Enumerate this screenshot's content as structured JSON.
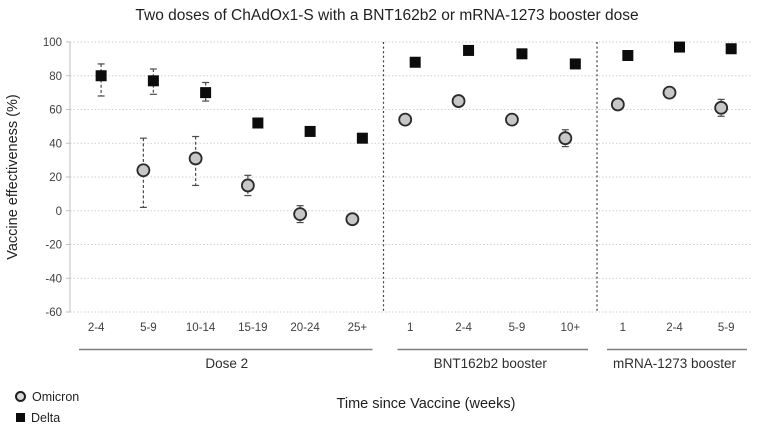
{
  "chart_data": {
    "type": "scatter",
    "title": "Two doses of ChAdOx1-S with a BNT162b2 or mRNA-1273 booster dose",
    "xlabel": "Time since Vaccine (weeks)",
    "ylabel": "Vaccine effectiveness (%)",
    "ylim": [
      -60,
      100
    ],
    "ytick_step": 20,
    "grid": true,
    "legend_position": "bottom-left",
    "groups": [
      {
        "label": "Dose 2",
        "categories": [
          "2-4",
          "5-9",
          "10-14",
          "15-19",
          "20-24",
          "25+"
        ]
      },
      {
        "label": "BNT162b2 booster",
        "categories": [
          "1",
          "2-4",
          "5-9",
          "10+"
        ]
      },
      {
        "label": "mRNA-1273 booster",
        "categories": [
          "1",
          "2-4",
          "5-9"
        ]
      }
    ],
    "series": [
      {
        "name": "Omicron",
        "marker": "circle",
        "fill": "#c7c7c7",
        "stroke": "#2b2b2b",
        "values": [
          [
            null,
            24,
            31,
            15,
            -2,
            -5
          ],
          [
            54,
            65,
            54,
            43
          ],
          [
            63,
            70,
            61
          ]
        ],
        "ci": [
          [
            null,
            [
              2,
              43
            ],
            [
              15,
              44
            ],
            [
              9,
              21
            ],
            [
              -7,
              3
            ],
            null
          ],
          [
            null,
            null,
            null,
            [
              38,
              48
            ]
          ],
          [
            null,
            null,
            [
              56,
              66
            ]
          ]
        ]
      },
      {
        "name": "Delta",
        "marker": "square",
        "fill": "#0c0c0c",
        "stroke": "#0c0c0c",
        "values": [
          [
            80,
            77,
            70,
            52,
            47,
            43
          ],
          [
            88,
            95,
            93,
            87
          ],
          [
            92,
            97,
            96
          ]
        ],
        "ci": [
          [
            [
              68,
              87
            ],
            [
              69,
              84
            ],
            [
              65,
              76
            ],
            null,
            null,
            null
          ],
          [
            null,
            null,
            null,
            null
          ],
          [
            null,
            null,
            null
          ]
        ]
      }
    ],
    "error_bar_color": "#4a4a4a",
    "gridline_color": "#cfcfcf",
    "axis_color": "#bfbfbf",
    "separator_color": "#3f3f3f"
  }
}
